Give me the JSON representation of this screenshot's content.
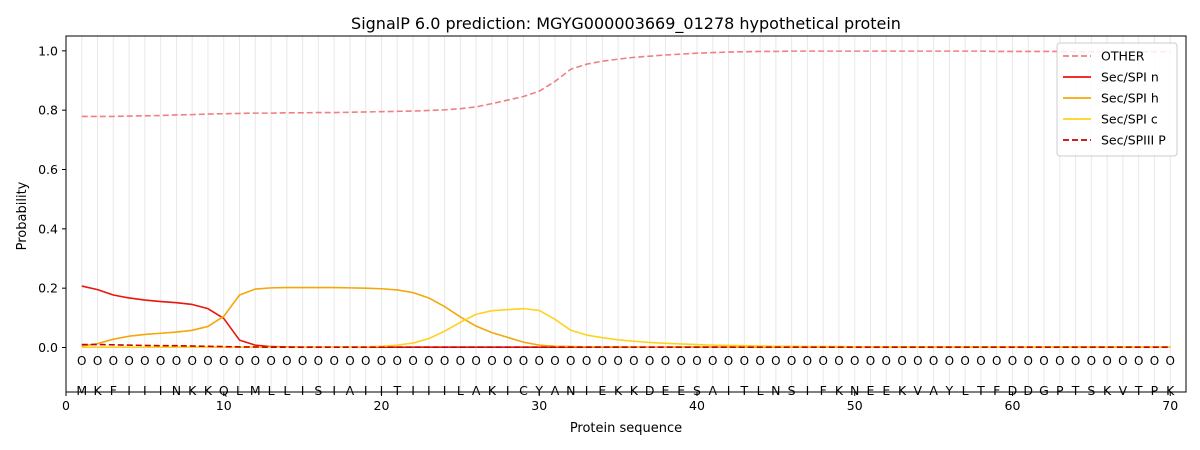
{
  "chart_data": {
    "type": "line",
    "title": "SignalP 6.0 prediction: MGYG000003669_01278 hypothetical protein",
    "xlabel": "Protein sequence",
    "ylabel": "Probability",
    "xlim": [
      0,
      71
    ],
    "ylim": [
      -0.15,
      1.05
    ],
    "x_ticks": [
      0,
      10,
      20,
      30,
      40,
      50,
      60,
      70
    ],
    "y_ticks": [
      0.0,
      0.2,
      0.4,
      0.6,
      0.8,
      1.0
    ],
    "x_tick_labels": [
      "0",
      "10",
      "20",
      "30",
      "40",
      "50",
      "60",
      "70"
    ],
    "y_tick_labels": [
      "0.0",
      "0.2",
      "0.4",
      "0.6",
      "0.8",
      "1.0"
    ],
    "grid": "vertical lines at each residue",
    "legend_position": "top-right",
    "residue_marker_y": -0.045,
    "residue_marker_label": "O",
    "residues": [
      "M",
      "K",
      "F",
      "I",
      "I",
      "I",
      "N",
      "K",
      "K",
      "Q",
      "L",
      "M",
      "L",
      "L",
      "I",
      "S",
      "I",
      "A",
      "I",
      "I",
      "T",
      "I",
      "I",
      "I",
      "L",
      "A",
      "K",
      "I",
      "C",
      "Y",
      "A",
      "N",
      "I",
      "E",
      "K",
      "K",
      "D",
      "E",
      "E",
      "S",
      "A",
      "I",
      "T",
      "L",
      "N",
      "S",
      "I",
      "F",
      "K",
      "N",
      "E",
      "E",
      "K",
      "V",
      "A",
      "Y",
      "L",
      "T",
      "F",
      "D",
      "D",
      "G",
      "P",
      "T",
      "S",
      "K",
      "V",
      "T",
      "P",
      "K"
    ],
    "series": [
      {
        "name": "OTHER",
        "color": "#f08080",
        "dash": "dashed",
        "values": [
          0.779,
          0.779,
          0.779,
          0.78,
          0.781,
          0.782,
          0.784,
          0.785,
          0.787,
          0.788,
          0.789,
          0.79,
          0.79,
          0.791,
          0.791,
          0.792,
          0.792,
          0.793,
          0.794,
          0.795,
          0.796,
          0.797,
          0.799,
          0.801,
          0.805,
          0.811,
          0.822,
          0.834,
          0.846,
          0.864,
          0.897,
          0.938,
          0.955,
          0.965,
          0.972,
          0.978,
          0.982,
          0.986,
          0.989,
          0.992,
          0.994,
          0.996,
          0.997,
          0.998,
          0.998,
          0.999,
          0.999,
          0.999,
          0.999,
          0.999,
          0.999,
          0.999,
          0.999,
          0.999,
          0.999,
          0.999,
          0.999,
          0.999,
          0.998,
          0.998,
          0.998,
          0.998,
          0.998,
          0.997,
          0.997,
          0.997,
          0.997,
          0.997,
          0.997,
          0.997
        ]
      },
      {
        "name": "Sec/SPI n",
        "color": "#e8160c",
        "dash": "solid",
        "values": [
          0.207,
          0.195,
          0.177,
          0.167,
          0.16,
          0.155,
          0.151,
          0.145,
          0.131,
          0.098,
          0.025,
          0.008,
          0.003,
          0.002,
          0.001,
          0.001,
          0.001,
          0.001,
          0.001,
          0.001,
          0.001,
          0.001,
          0.001,
          0.001,
          0.001,
          0.001,
          0.001,
          0.001,
          0.001,
          0.001,
          0.001,
          0.001,
          0.001,
          0.001,
          0.001,
          0.001,
          0.001,
          0.001,
          0.001,
          0.001,
          0.001,
          0.001,
          0.001,
          0.001,
          0.001,
          0.001,
          0.001,
          0.001,
          0.001,
          0.001,
          0.001,
          0.001,
          0.001,
          0.001,
          0.001,
          0.001,
          0.001,
          0.001,
          0.001,
          0.001,
          0.001,
          0.001,
          0.001,
          0.001,
          0.001,
          0.001,
          0.001,
          0.001,
          0.001,
          0.001
        ]
      },
      {
        "name": "Sec/SPI h",
        "color": "#f5a70a",
        "dash": "solid",
        "values": [
          0.005,
          0.013,
          0.028,
          0.038,
          0.044,
          0.048,
          0.052,
          0.058,
          0.071,
          0.105,
          0.177,
          0.197,
          0.201,
          0.202,
          0.202,
          0.202,
          0.202,
          0.201,
          0.2,
          0.198,
          0.194,
          0.185,
          0.167,
          0.138,
          0.103,
          0.072,
          0.05,
          0.034,
          0.018,
          0.008,
          0.004,
          0.003,
          0.002,
          0.002,
          0.002,
          0.001,
          0.001,
          0.001,
          0.001,
          0.001,
          0.001,
          0.001,
          0.001,
          0.001,
          0.001,
          0.001,
          0.001,
          0.001,
          0.001,
          0.001,
          0.001,
          0.001,
          0.001,
          0.001,
          0.001,
          0.001,
          0.001,
          0.001,
          0.001,
          0.001,
          0.001,
          0.001,
          0.001,
          0.001,
          0.001,
          0.001,
          0.001,
          0.001,
          0.001,
          0.001
        ]
      },
      {
        "name": "Sec/SPI c",
        "color": "#ffd21f",
        "dash": "solid",
        "values": [
          0.001,
          0.001,
          0.001,
          0.001,
          0.001,
          0.001,
          0.001,
          0.001,
          0.001,
          0.001,
          0.001,
          0.001,
          0.001,
          0.001,
          0.001,
          0.001,
          0.001,
          0.001,
          0.002,
          0.004,
          0.008,
          0.015,
          0.03,
          0.055,
          0.085,
          0.112,
          0.124,
          0.128,
          0.131,
          0.125,
          0.095,
          0.058,
          0.042,
          0.033,
          0.026,
          0.021,
          0.017,
          0.014,
          0.012,
          0.01,
          0.008,
          0.007,
          0.006,
          0.005,
          0.004,
          0.004,
          0.003,
          0.003,
          0.003,
          0.002,
          0.002,
          0.002,
          0.002,
          0.002,
          0.002,
          0.002,
          0.002,
          0.002,
          0.002,
          0.002,
          0.002,
          0.002,
          0.002,
          0.002,
          0.002,
          0.002,
          0.002,
          0.002,
          0.002,
          0.002
        ]
      },
      {
        "name": "Sec/SPIII P",
        "color": "#cc0000",
        "dash": "dashed",
        "values": [
          0.01,
          0.01,
          0.009,
          0.008,
          0.007,
          0.006,
          0.006,
          0.005,
          0.004,
          0.003,
          0.002,
          0.002,
          0.001,
          0.001,
          0.001,
          0.001,
          0.001,
          0.001,
          0.001,
          0.001,
          0.001,
          0.001,
          0.001,
          0.001,
          0.001,
          0.001,
          0.001,
          0.001,
          0.001,
          0.001,
          0.001,
          0.001,
          0.001,
          0.001,
          0.001,
          0.001,
          0.001,
          0.001,
          0.001,
          0.001,
          0.001,
          0.001,
          0.001,
          0.001,
          0.001,
          0.001,
          0.001,
          0.001,
          0.001,
          0.001,
          0.001,
          0.001,
          0.001,
          0.001,
          0.001,
          0.001,
          0.001,
          0.001,
          0.001,
          0.001,
          0.001,
          0.001,
          0.001,
          0.001,
          0.001,
          0.001,
          0.001,
          0.001,
          0.001,
          0.001
        ]
      }
    ]
  }
}
